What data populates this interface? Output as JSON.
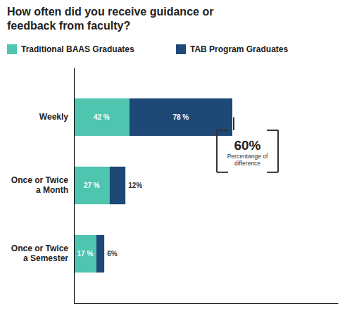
{
  "chart_data": {
    "type": "bar",
    "orientation": "horizontal",
    "stacked": true,
    "title": "How often did you receive guidance or\nfeedback from faculty?",
    "categories": [
      "Weekly",
      "Once or Twice\na Month",
      "Once or Twice\na Semester"
    ],
    "series": [
      {
        "name": "Traditional BAAS Graduates",
        "color": "#4fc5b0",
        "values": [
          42,
          27,
          17
        ],
        "value_labels": [
          "42 %",
          "27 %",
          "17 %"
        ]
      },
      {
        "name": "TAB Program Graduates",
        "color": "#1e4876",
        "values": [
          78,
          12,
          6
        ],
        "value_labels": [
          "78 %",
          "12%",
          "6%"
        ]
      }
    ],
    "xlim": [
      0,
      200
    ],
    "tick_labels": "y",
    "data_labels": true,
    "legend": "top",
    "annotations": [
      "60%",
      "Percentange of\ndifference"
    ]
  }
}
